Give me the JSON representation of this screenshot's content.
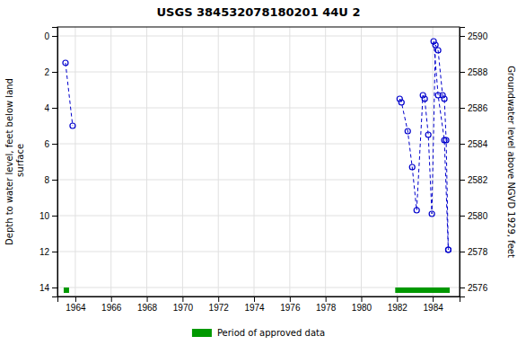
{
  "chart_data": {
    "type": "line",
    "title": "USGS 384532078180201 44U  2",
    "ylabel": "Depth to water level, feet below land\n surface",
    "y2label": "Groundwater level above NGVD 1929, feet",
    "xlim": [
      1963.0,
      1985.5
    ],
    "xticks": [
      1964,
      1966,
      1968,
      1970,
      1972,
      1974,
      1976,
      1978,
      1980,
      1982,
      1984
    ],
    "ylim": [
      14.5,
      -0.5
    ],
    "yticks": [
      0,
      2,
      4,
      6,
      8,
      10,
      12,
      14
    ],
    "y2lim": [
      2575.5,
      2590.5
    ],
    "y2ticks": [
      2576,
      2578,
      2580,
      2582,
      2584,
      2586,
      2588,
      2590
    ],
    "grid": true,
    "legend": "bottom",
    "series": [
      {
        "type": "line",
        "color": "#0000CC",
        "marker": "open-circle",
        "line_style": "dashed",
        "x": [
          1963.45,
          1963.85
        ],
        "values": [
          1.5,
          5.0
        ]
      },
      {
        "type": "line",
        "color": "#0000CC",
        "marker": "open-circle",
        "line_style": "dashed",
        "x": [
          1982.15,
          1982.25,
          1982.6,
          1982.85,
          1983.1,
          1983.45,
          1983.55,
          1983.75,
          1983.95,
          1984.15,
          1984.3,
          1984.55,
          1984.65,
          1984.75,
          1984.87
        ],
        "values": [
          3.5,
          3.7,
          5.3,
          7.3,
          9.7,
          3.3,
          3.5,
          5.5,
          9.9,
          0.5,
          0.8,
          3.3,
          3.5,
          5.8,
          11.9
        ]
      },
      {
        "type": "line",
        "color": "#0000CC",
        "marker": "open-circle",
        "line_style": "dashed",
        "x": [
          1984.05,
          1984.3,
          1984.65,
          1984.87
        ],
        "values": [
          0.3,
          3.3,
          5.8,
          11.9
        ]
      },
      {
        "type": "span",
        "name": "Period of approved data",
        "color": "#009900",
        "x_start": [
          1963.35,
          1981.9
        ],
        "x_end": [
          1963.65,
          1984.95
        ]
      }
    ]
  }
}
